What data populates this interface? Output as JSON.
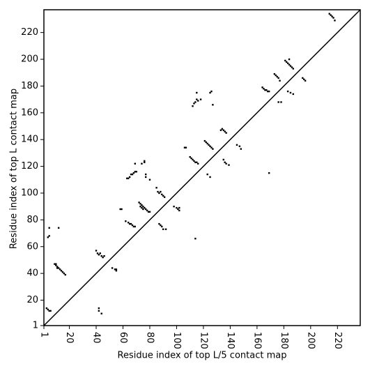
{
  "chart_data": {
    "type": "scatter",
    "xlabel": "Residue index of top L/5 contact map",
    "ylabel": "Residue index of top L contact map",
    "xlim": [
      1,
      237
    ],
    "ylim": [
      1,
      237
    ],
    "xticks": [
      1,
      20,
      40,
      60,
      80,
      100,
      120,
      140,
      160,
      180,
      200,
      220
    ],
    "yticks": [
      1,
      20,
      40,
      60,
      80,
      100,
      120,
      140,
      160,
      180,
      200,
      220
    ],
    "diagonal": true,
    "series": [
      {
        "color": "#000000",
        "x": [
          3,
          4,
          5,
          6,
          42,
          42,
          44,
          169,
          114,
          4,
          5,
          5,
          9,
          10,
          11,
          12,
          13,
          14,
          15,
          16,
          17,
          10,
          11,
          12,
          40,
          41,
          42,
          43,
          44,
          45,
          46,
          52,
          54,
          55,
          55,
          58,
          59,
          62,
          64,
          65,
          66,
          67,
          68,
          69,
          63,
          64,
          65,
          66,
          67,
          68,
          69,
          70,
          69,
          72,
          73,
          74,
          75,
          76,
          77,
          78,
          79,
          80,
          73,
          74,
          75,
          74,
          76,
          76,
          77,
          77,
          80,
          85,
          86,
          87,
          88,
          89,
          90,
          91,
          87,
          88,
          89,
          90,
          92,
          98,
          100,
          101,
          102,
          102,
          106,
          107,
          110,
          111,
          112,
          113,
          114,
          115,
          116,
          112,
          113,
          114,
          115,
          116,
          118,
          115,
          121,
          122,
          123,
          124,
          125,
          126,
          127,
          123,
          125,
          125,
          126,
          127,
          133,
          134,
          135,
          136,
          137,
          135,
          136,
          137,
          139,
          145,
          147,
          148,
          164,
          165,
          166,
          167,
          168,
          169,
          173,
          174,
          175,
          176,
          177,
          176,
          178,
          181,
          182,
          183,
          184,
          185,
          186,
          187,
          184,
          183,
          185,
          187,
          194,
          195,
          196,
          214,
          215,
          216,
          217,
          218
        ],
        "y": [
          14,
          13,
          12,
          12,
          14,
          12,
          10,
          115,
          66,
          67,
          68,
          74,
          47,
          46,
          45,
          44,
          43,
          42,
          41,
          40,
          39,
          47,
          44,
          74,
          57,
          55,
          54,
          55,
          53,
          52,
          53,
          44,
          43,
          42,
          43,
          88,
          88,
          79,
          78,
          77,
          77,
          76,
          75,
          75,
          111,
          111,
          112,
          114,
          114,
          115,
          116,
          116,
          122,
          93,
          92,
          91,
          90,
          89,
          88,
          87,
          86,
          86,
          90,
          89,
          88,
          122,
          124,
          123,
          114,
          112,
          110,
          104,
          101,
          100,
          101,
          99,
          98,
          97,
          77,
          76,
          75,
          73,
          73,
          90,
          89,
          88,
          87,
          89,
          134,
          134,
          127,
          126,
          125,
          124,
          123,
          123,
          122,
          165,
          167,
          168,
          170,
          169,
          170,
          175,
          139,
          138,
          137,
          136,
          135,
          134,
          133,
          114,
          112,
          175,
          176,
          166,
          147,
          148,
          147,
          146,
          145,
          125,
          123,
          122,
          121,
          136,
          135,
          133,
          179,
          178,
          177,
          177,
          176,
          176,
          189,
          188,
          187,
          186,
          184,
          168,
          168,
          199,
          198,
          197,
          196,
          195,
          194,
          193,
          200,
          176,
          175,
          174,
          186,
          185,
          184,
          234,
          233,
          232,
          231,
          229
        ]
      }
    ]
  }
}
